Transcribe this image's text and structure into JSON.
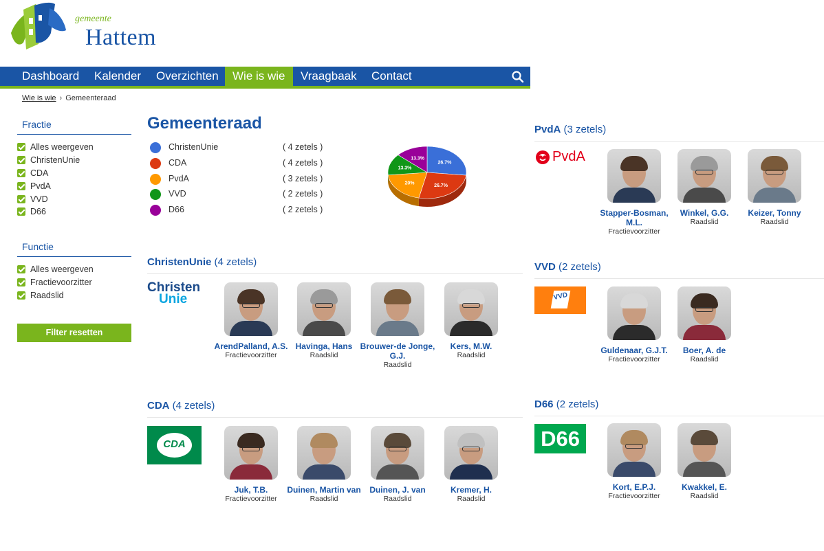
{
  "header": {
    "logo_small": "gemeente",
    "logo_big": "Hattem"
  },
  "nav": {
    "items": [
      {
        "label": "Dashboard"
      },
      {
        "label": "Kalender"
      },
      {
        "label": "Overzichten"
      },
      {
        "label": "Wie is wie",
        "active": true
      },
      {
        "label": "Vraagbaak"
      },
      {
        "label": "Contact"
      }
    ],
    "search_icon": "search-icon"
  },
  "breadcrumb": {
    "link": "Wie is wie",
    "current": "Gemeenteraad"
  },
  "sidebar": {
    "fractie": {
      "title": "Fractie",
      "items": [
        "Alles weergeven",
        "ChristenUnie",
        "CDA",
        "PvdA",
        "VVD",
        "D66"
      ]
    },
    "functie": {
      "title": "Functie",
      "items": [
        "Alles weergeven",
        "Fractievoorzitter",
        "Raadslid"
      ]
    },
    "reset_label": "Filter resetten"
  },
  "main": {
    "title": "Gemeenteraad",
    "legend": [
      {
        "name": "ChristenUnie",
        "seats": "( 4 zetels )",
        "color": "#3a6fd8"
      },
      {
        "name": "CDA",
        "seats": "( 4 zetels )",
        "color": "#dc3912"
      },
      {
        "name": "PvdA",
        "seats": "( 3 zetels )",
        "color": "#ff9900"
      },
      {
        "name": "VVD",
        "seats": "( 2 zetels )",
        "color": "#109618"
      },
      {
        "name": "D66",
        "seats": "( 2 zetels )",
        "color": "#990099"
      }
    ]
  },
  "chart_data": {
    "type": "pie",
    "slices": [
      {
        "label": "26.7%",
        "value": 26.7,
        "color": "#3a6fd8"
      },
      {
        "label": "26.7%",
        "value": 26.7,
        "color": "#dc3912"
      },
      {
        "label": "20%",
        "value": 20,
        "color": "#ff9900"
      },
      {
        "label": "13.3%",
        "value": 13.3,
        "color": "#109618"
      },
      {
        "label": "13.3%",
        "value": 13.3,
        "color": "#990099"
      }
    ]
  },
  "parties": {
    "christenunie": {
      "name": "ChristenUnie",
      "seats": "(4 zetels)",
      "logo_line1": "Christen",
      "logo_line2": "Unie",
      "members": [
        {
          "name": "ArendPalland, A.S.",
          "role": "Fractievoorzitter"
        },
        {
          "name": "Havinga, Hans",
          "role": "Raadslid"
        },
        {
          "name": "Brouwer-de Jonge, G.J.",
          "role": "Raadslid"
        },
        {
          "name": "Kers, M.W.",
          "role": "Raadslid"
        }
      ]
    },
    "cda": {
      "name": "CDA",
      "seats": "(4 zetels)",
      "logo_text": "CDA",
      "members": [
        {
          "name": "Juk, T.B.",
          "role": "Fractievoorzitter"
        },
        {
          "name": "Duinen, Martin van",
          "role": "Raadslid"
        },
        {
          "name": "Duinen, J. van",
          "role": "Raadslid"
        },
        {
          "name": "Kremer, H.",
          "role": "Raadslid"
        }
      ]
    },
    "pvda": {
      "name": "PvdA",
      "seats": "(3 zetels)",
      "logo_text": "PvdA",
      "members": [
        {
          "name": "Stapper-Bosman, M.L.",
          "role": "Fractievoorzitter"
        },
        {
          "name": "Winkel, G.G.",
          "role": "Raadslid"
        },
        {
          "name": "Keizer, Tonny",
          "role": "Raadslid"
        }
      ]
    },
    "vvd": {
      "name": "VVD",
      "seats": "(2 zetels)",
      "logo_text": "VVD",
      "members": [
        {
          "name": "Guldenaar, G.J.T.",
          "role": "Fractievoorzitter"
        },
        {
          "name": "Boer, A. de",
          "role": "Raadslid"
        }
      ]
    },
    "d66": {
      "name": "D66",
      "seats": "(2 zetels)",
      "logo_text": "D66",
      "members": [
        {
          "name": "Kort, E.P.J.",
          "role": "Fractievoorzitter"
        },
        {
          "name": "Kwakkel, E.",
          "role": "Raadslid"
        }
      ]
    }
  }
}
